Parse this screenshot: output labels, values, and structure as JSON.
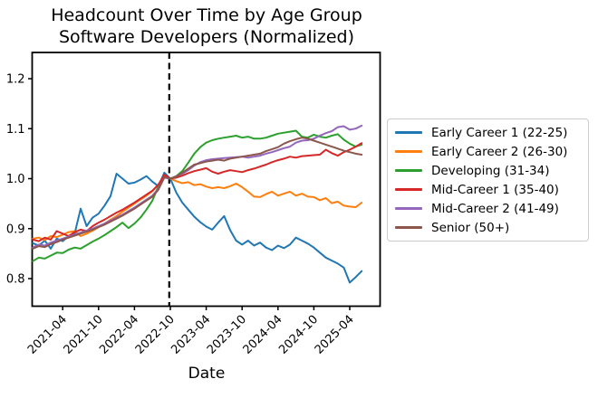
{
  "chart_data": {
    "type": "line",
    "title": "Headcount Over Time by Age Group",
    "subtitle": "Software Developers (Normalized)",
    "xlabel": "Date",
    "ylabel": "",
    "grid": false,
    "legend_position": "outside-right",
    "axis_color": "#000000",
    "legend_border_color": "#cccccc",
    "y_ticks": [
      0.8,
      0.9,
      1.0,
      1.1,
      1.2
    ],
    "ylim": [
      0.747,
      1.253
    ],
    "x_tick_labels": [
      "2021-04",
      "2021-10",
      "2022-04",
      "2022-10",
      "2023-04",
      "2023-10",
      "2024-04",
      "2024-10",
      "2025-04"
    ],
    "vline": {
      "x_label": "2022-10",
      "style": "dashed",
      "color": "#000000"
    },
    "x_monthly": [
      "2020-11",
      "2020-12",
      "2021-01",
      "2021-02",
      "2021-03",
      "2021-04",
      "2021-05",
      "2021-06",
      "2021-07",
      "2021-08",
      "2021-09",
      "2021-10",
      "2021-11",
      "2021-12",
      "2022-01",
      "2022-02",
      "2022-03",
      "2022-04",
      "2022-05",
      "2022-06",
      "2022-07",
      "2022-08",
      "2022-09",
      "2022-10",
      "2022-11",
      "2022-12",
      "2023-01",
      "2023-02",
      "2023-03",
      "2023-04",
      "2023-05",
      "2023-06",
      "2023-07",
      "2023-08",
      "2023-09",
      "2023-10",
      "2023-11",
      "2023-12",
      "2024-01",
      "2024-02",
      "2024-03",
      "2024-04",
      "2024-05",
      "2024-06",
      "2024-07",
      "2024-08",
      "2024-09",
      "2024-10",
      "2024-11",
      "2024-12",
      "2025-01",
      "2025-02",
      "2025-03",
      "2025-04",
      "2025-05",
      "2025-06"
    ],
    "series": [
      {
        "name": "Early Career 1 (22-25)",
        "color": "#1f77b4",
        "values": [
          0.871,
          0.866,
          0.876,
          0.86,
          0.88,
          0.875,
          0.885,
          0.89,
          0.94,
          0.905,
          0.922,
          0.93,
          0.946,
          0.965,
          1.01,
          1.0,
          0.99,
          0.992,
          0.998,
          1.005,
          0.994,
          0.985,
          1.012,
          1.0,
          0.972,
          0.952,
          0.938,
          0.924,
          0.913,
          0.904,
          0.898,
          0.912,
          0.925,
          0.897,
          0.876,
          0.868,
          0.876,
          0.866,
          0.872,
          0.862,
          0.857,
          0.866,
          0.861,
          0.868,
          0.882,
          0.876,
          0.87,
          0.862,
          0.852,
          0.842,
          0.836,
          0.83,
          0.822,
          0.792,
          0.803,
          0.815
        ]
      },
      {
        "name": "Early Career 2 (26-30)",
        "color": "#ff7f0e",
        "values": [
          0.88,
          0.882,
          0.877,
          0.885,
          0.883,
          0.888,
          0.893,
          0.895,
          0.885,
          0.89,
          0.896,
          0.903,
          0.91,
          0.918,
          0.925,
          0.934,
          0.942,
          0.95,
          0.958,
          0.966,
          0.975,
          0.988,
          1.006,
          1.0,
          0.995,
          0.991,
          0.993,
          0.987,
          0.989,
          0.984,
          0.981,
          0.983,
          0.981,
          0.985,
          0.99,
          0.983,
          0.974,
          0.964,
          0.963,
          0.969,
          0.974,
          0.966,
          0.97,
          0.974,
          0.966,
          0.97,
          0.964,
          0.963,
          0.957,
          0.961,
          0.951,
          0.954,
          0.946,
          0.944,
          0.943,
          0.952
        ]
      },
      {
        "name": "Developing (31-34)",
        "color": "#2ca02c",
        "values": [
          0.835,
          0.842,
          0.84,
          0.846,
          0.852,
          0.851,
          0.858,
          0.862,
          0.86,
          0.867,
          0.874,
          0.88,
          0.887,
          0.895,
          0.903,
          0.912,
          0.901,
          0.91,
          0.922,
          0.938,
          0.956,
          0.985,
          1.004,
          1.0,
          1.005,
          1.015,
          1.032,
          1.05,
          1.063,
          1.072,
          1.077,
          1.08,
          1.082,
          1.084,
          1.086,
          1.082,
          1.084,
          1.08,
          1.08,
          1.082,
          1.086,
          1.09,
          1.092,
          1.094,
          1.096,
          1.084,
          1.082,
          1.088,
          1.084,
          1.082,
          1.086,
          1.089,
          1.078,
          1.07,
          1.064,
          1.068
        ]
      },
      {
        "name": "Mid-Career 1 (35-40)",
        "color": "#d62728",
        "values": [
          0.878,
          0.875,
          0.882,
          0.878,
          0.895,
          0.89,
          0.885,
          0.893,
          0.898,
          0.895,
          0.905,
          0.912,
          0.918,
          0.925,
          0.932,
          0.938,
          0.945,
          0.952,
          0.96,
          0.968,
          0.976,
          0.988,
          1.008,
          1.0,
          1.002,
          1.006,
          1.011,
          1.015,
          1.018,
          1.021,
          1.014,
          1.01,
          1.014,
          1.017,
          1.015,
          1.013,
          1.017,
          1.02,
          1.024,
          1.028,
          1.033,
          1.037,
          1.04,
          1.044,
          1.042,
          1.045,
          1.046,
          1.047,
          1.048,
          1.058,
          1.051,
          1.046,
          1.053,
          1.058,
          1.064,
          1.071
        ]
      },
      {
        "name": "Mid-Career 2 (41-49)",
        "color": "#9467bd",
        "values": [
          0.862,
          0.868,
          0.866,
          0.872,
          0.876,
          0.88,
          0.884,
          0.888,
          0.892,
          0.896,
          0.9,
          0.905,
          0.91,
          0.916,
          0.922,
          0.928,
          0.935,
          0.942,
          0.95,
          0.958,
          0.966,
          0.98,
          1.002,
          1.0,
          1.005,
          1.01,
          1.017,
          1.026,
          1.033,
          1.037,
          1.039,
          1.04,
          1.041,
          1.042,
          1.043,
          1.044,
          1.042,
          1.044,
          1.046,
          1.05,
          1.053,
          1.057,
          1.061,
          1.064,
          1.072,
          1.076,
          1.077,
          1.08,
          1.086,
          1.091,
          1.095,
          1.103,
          1.105,
          1.098,
          1.1,
          1.106
        ]
      },
      {
        "name": "Senior (50+)",
        "color": "#8c564b",
        "values": [
          0.86,
          0.865,
          0.863,
          0.869,
          0.873,
          0.878,
          0.882,
          0.886,
          0.89,
          0.894,
          0.898,
          0.903,
          0.908,
          0.914,
          0.92,
          0.926,
          0.933,
          0.94,
          0.948,
          0.956,
          0.964,
          0.978,
          1.003,
          1.0,
          1.004,
          1.012,
          1.02,
          1.028,
          1.031,
          1.034,
          1.036,
          1.038,
          1.036,
          1.04,
          1.042,
          1.044,
          1.046,
          1.048,
          1.05,
          1.055,
          1.059,
          1.063,
          1.07,
          1.075,
          1.079,
          1.082,
          1.08,
          1.076,
          1.072,
          1.068,
          1.064,
          1.06,
          1.056,
          1.053,
          1.05,
          1.048
        ]
      }
    ]
  }
}
